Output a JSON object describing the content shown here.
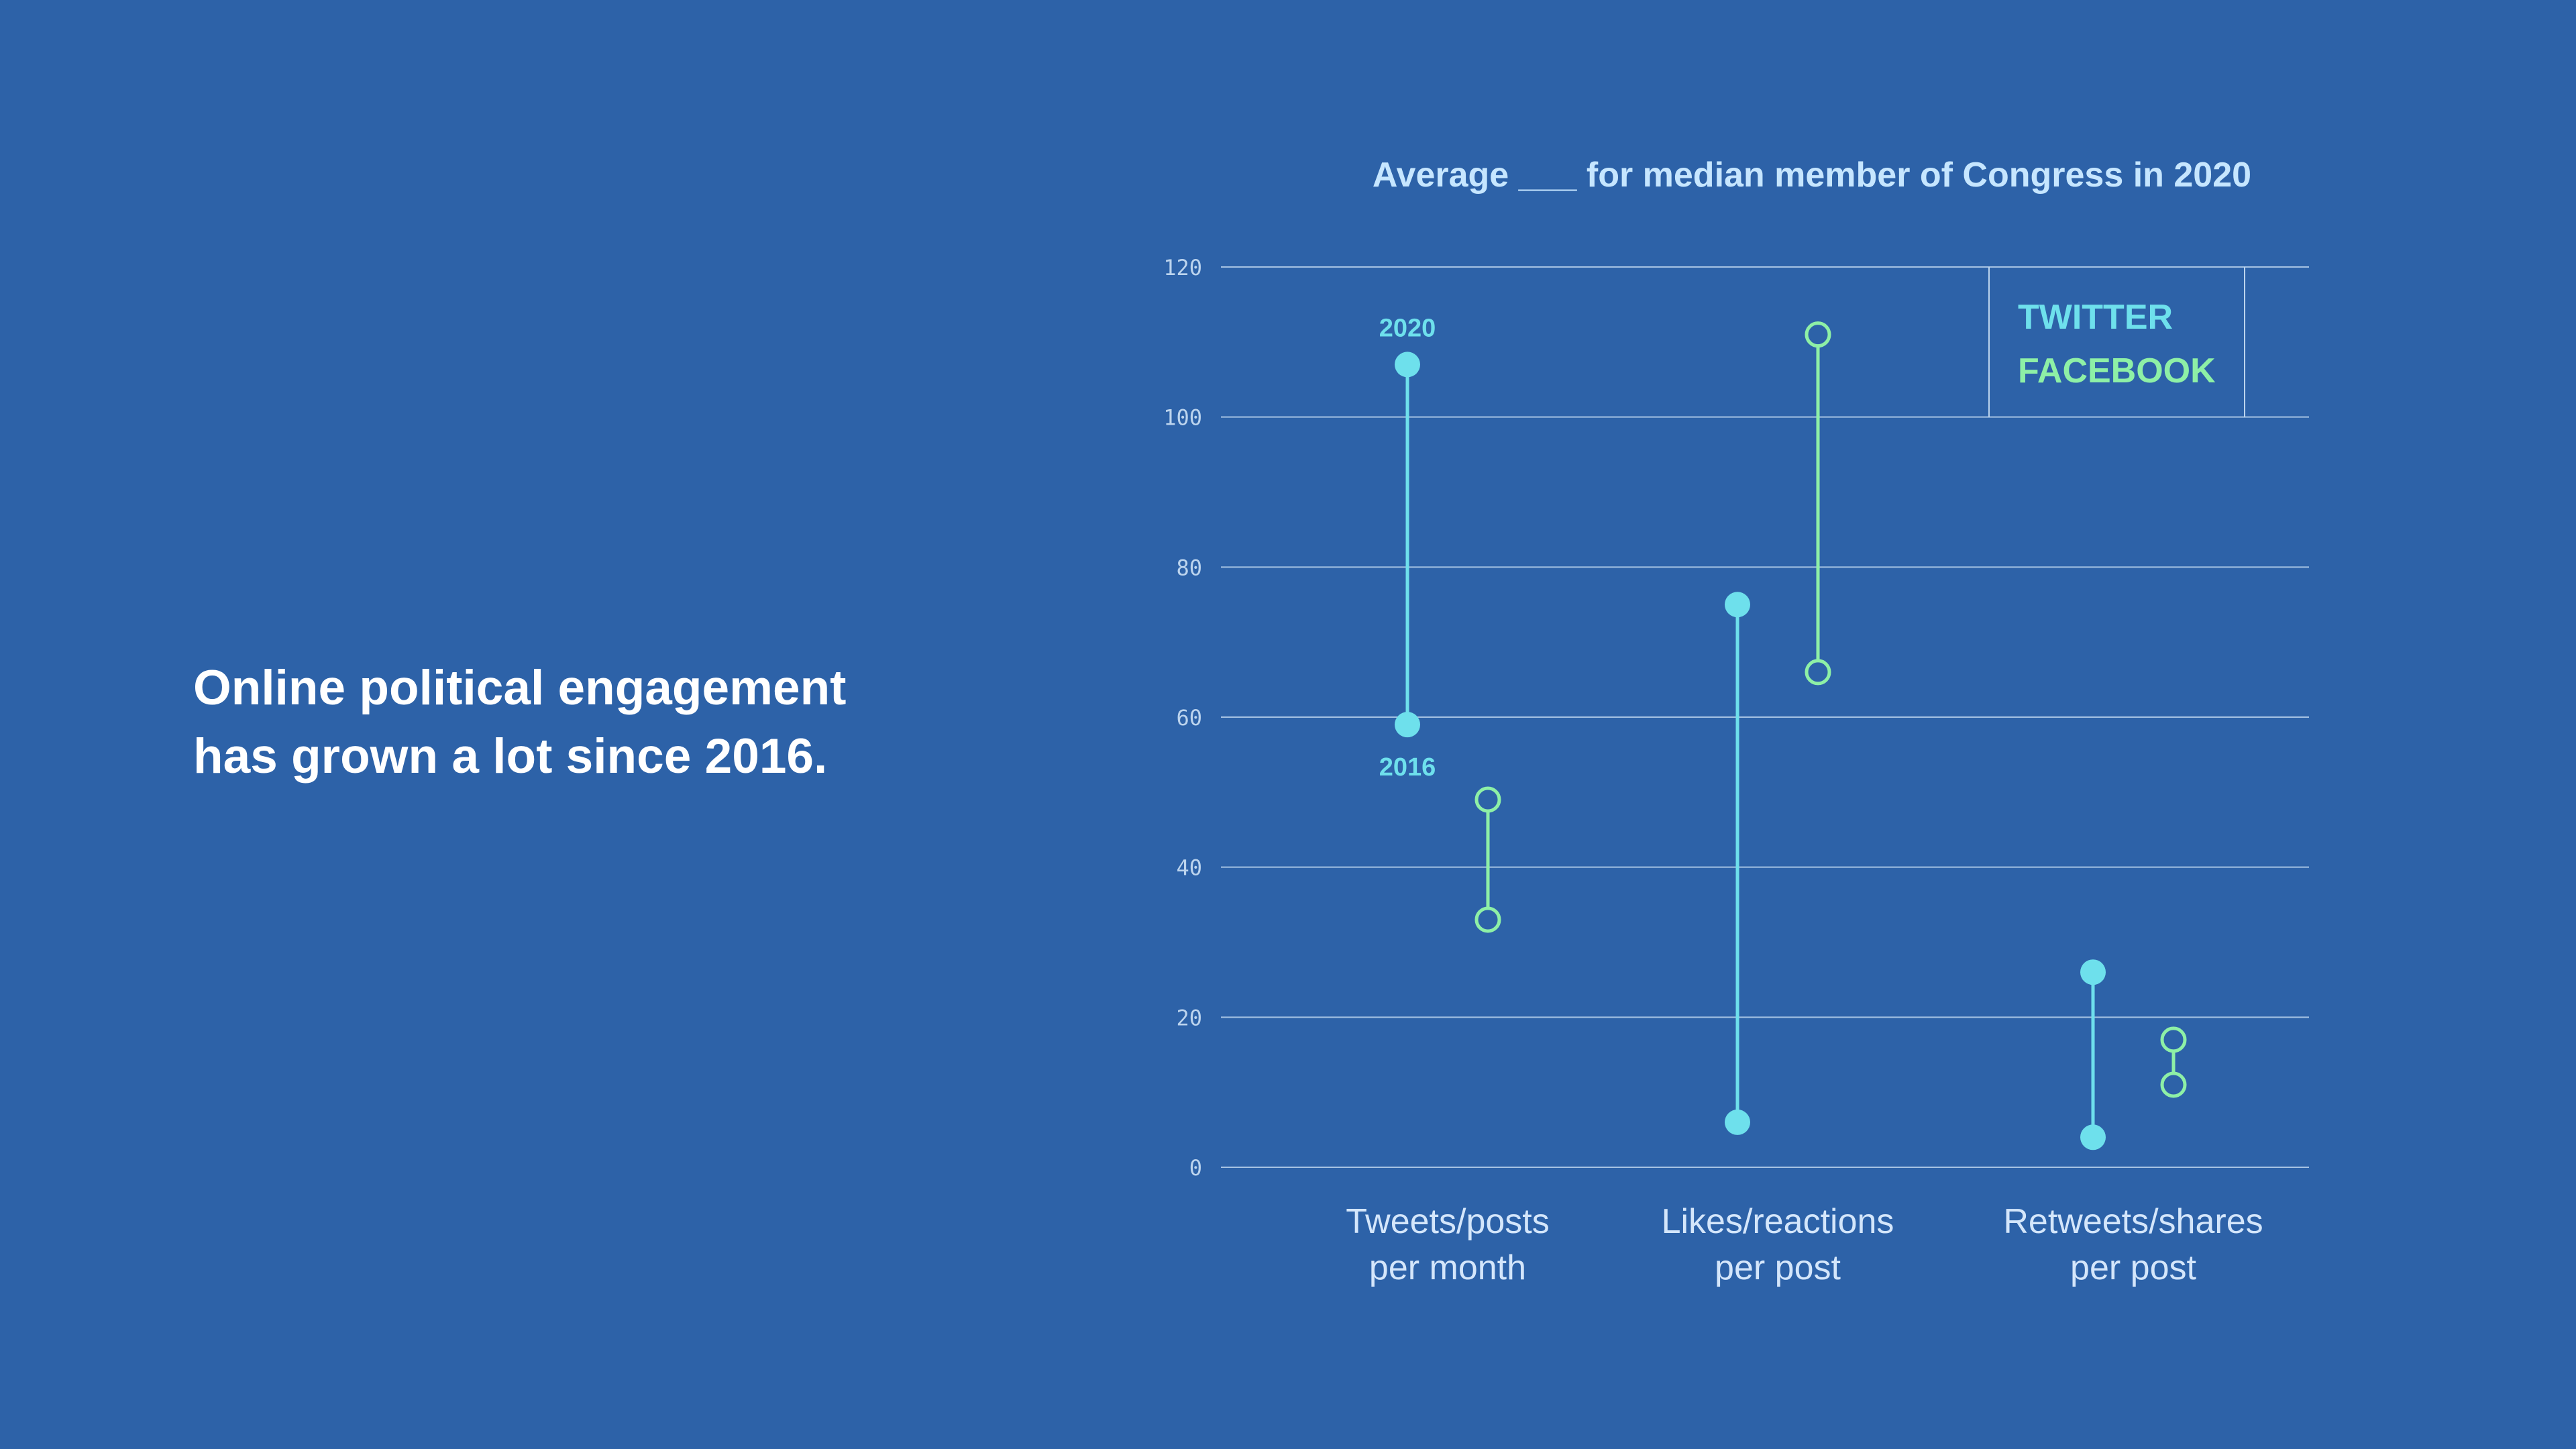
{
  "headline": {
    "line1": "Online political engagement",
    "line2": "has grown a lot since 2016."
  },
  "colors": {
    "background": "#2d62a8",
    "twitter": "#6ee0ec",
    "facebook": "#8ef0a6",
    "title": "#c6e6ff",
    "axis": "#bcd4ee",
    "category_label": "#d4e6fb"
  },
  "chart_data": {
    "type": "dumbbell",
    "title": "Average ___ for median member of Congress in 2020",
    "ylim": [
      0,
      120
    ],
    "yticks": [
      0,
      20,
      40,
      60,
      80,
      100,
      120
    ],
    "grid": true,
    "legend_position": "top-right",
    "categories": [
      {
        "label_line1": "Tweets/posts",
        "label_line2": "per month"
      },
      {
        "label_line1": "Likes/reactions",
        "label_line2": "per post"
      },
      {
        "label_line1": "Retweets/shares",
        "label_line2": "per post"
      }
    ],
    "series": [
      {
        "name": "TWITTER",
        "marker": "filled",
        "values_2016": [
          59,
          6,
          4
        ],
        "values_2020": [
          107,
          75,
          26
        ]
      },
      {
        "name": "FACEBOOK",
        "marker": "hollow",
        "values_2016": [
          33,
          66,
          11
        ],
        "values_2020": [
          49,
          111,
          17
        ]
      }
    ],
    "annotations": [
      {
        "text": "2020",
        "series": "TWITTER",
        "category": 0,
        "point": "2020"
      },
      {
        "text": "2016",
        "series": "TWITTER",
        "category": 0,
        "point": "2016"
      }
    ]
  }
}
